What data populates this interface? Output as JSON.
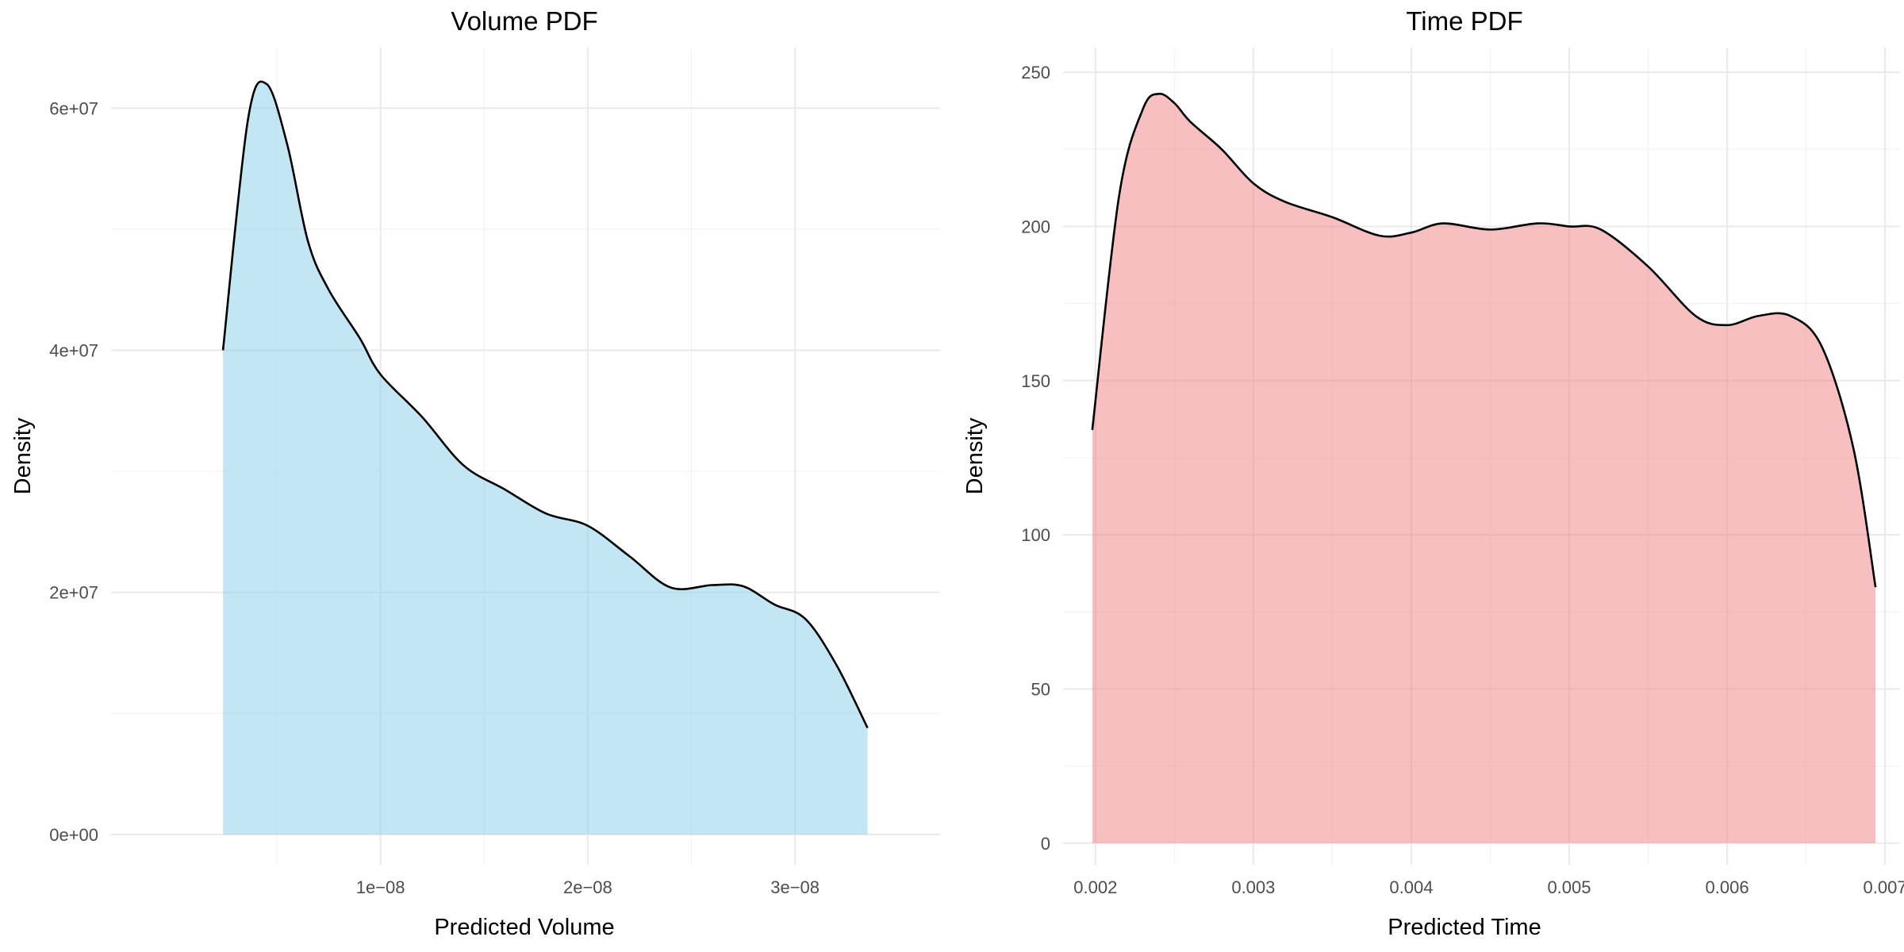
{
  "chart_data": [
    {
      "type": "area",
      "title": "Volume PDF",
      "xlabel": "Predicted Volume",
      "ylabel": "Density",
      "color": "#87CEEB",
      "fill_opacity": 0.5,
      "grid": true,
      "xlim": [
        -3e-09,
        3.7e-08
      ],
      "ylim": [
        -2500000,
        65000000
      ],
      "x_ticks": [
        1e-08,
        2e-08,
        3e-08
      ],
      "x_tick_labels": [
        "1e−08",
        "2e−08",
        "3e−08"
      ],
      "y_ticks": [
        0,
        20000000,
        40000000,
        60000000
      ],
      "y_tick_labels": [
        "0e+00",
        "2e+07",
        "4e+07",
        "6e+07"
      ],
      "x_minor": [
        5e-09,
        1.5e-08,
        2.5e-08
      ],
      "y_minor": [
        10000000,
        30000000,
        50000000
      ],
      "x": [
        2.4e-09,
        3.6e-09,
        4.5e-09,
        5.5e-09,
        6.5e-09,
        7.5e-09,
        9e-09,
        1e-08,
        1.2e-08,
        1.4e-08,
        1.6e-08,
        1.8e-08,
        2e-08,
        2.2e-08,
        2.4e-08,
        2.6e-08,
        2.75e-08,
        2.9e-08,
        3.05e-08,
        3.2e-08,
        3.35e-08
      ],
      "y": [
        40000000,
        59000000,
        62000000,
        57000000,
        49000000,
        45000000,
        41000000,
        38000000,
        34500000,
        30500000,
        28500000,
        26500000,
        25500000,
        23000000,
        20400000,
        20600000,
        20500000,
        19000000,
        17800000,
        14000000,
        8800000
      ]
    },
    {
      "type": "area",
      "title": "Time PDF",
      "xlabel": "Predicted Time",
      "ylabel": "Density",
      "color": "#F08080",
      "fill_opacity": 0.5,
      "grid": true,
      "xlim": [
        0.001795,
        0.007095
      ],
      "ylim": [
        -7,
        258
      ],
      "x_ticks": [
        0.002,
        0.003,
        0.004,
        0.005,
        0.006,
        0.007
      ],
      "x_tick_labels": [
        "0.002",
        "0.003",
        "0.004",
        "0.005",
        "0.006",
        "0.007"
      ],
      "y_ticks": [
        0,
        50,
        100,
        150,
        200,
        250
      ],
      "y_tick_labels": [
        "0",
        "50",
        "100",
        "150",
        "200",
        "250"
      ],
      "x_minor": [
        0.0025,
        0.0035,
        0.0045,
        0.0055,
        0.0065
      ],
      "y_minor": [
        25,
        75,
        125,
        175,
        225
      ],
      "x": [
        0.00198,
        0.00215,
        0.0023,
        0.0024,
        0.0025,
        0.0026,
        0.0028,
        0.003,
        0.0032,
        0.0035,
        0.0038,
        0.004,
        0.0042,
        0.0045,
        0.0048,
        0.005,
        0.0052,
        0.0055,
        0.0058,
        0.006,
        0.0062,
        0.0064,
        0.0066,
        0.0068,
        0.00694
      ],
      "y": [
        134,
        210,
        238,
        243,
        240,
        234,
        225,
        214,
        208,
        203,
        197,
        198,
        201,
        199,
        201,
        200,
        199,
        187,
        171,
        168,
        171,
        171,
        161,
        128,
        83
      ]
    }
  ]
}
